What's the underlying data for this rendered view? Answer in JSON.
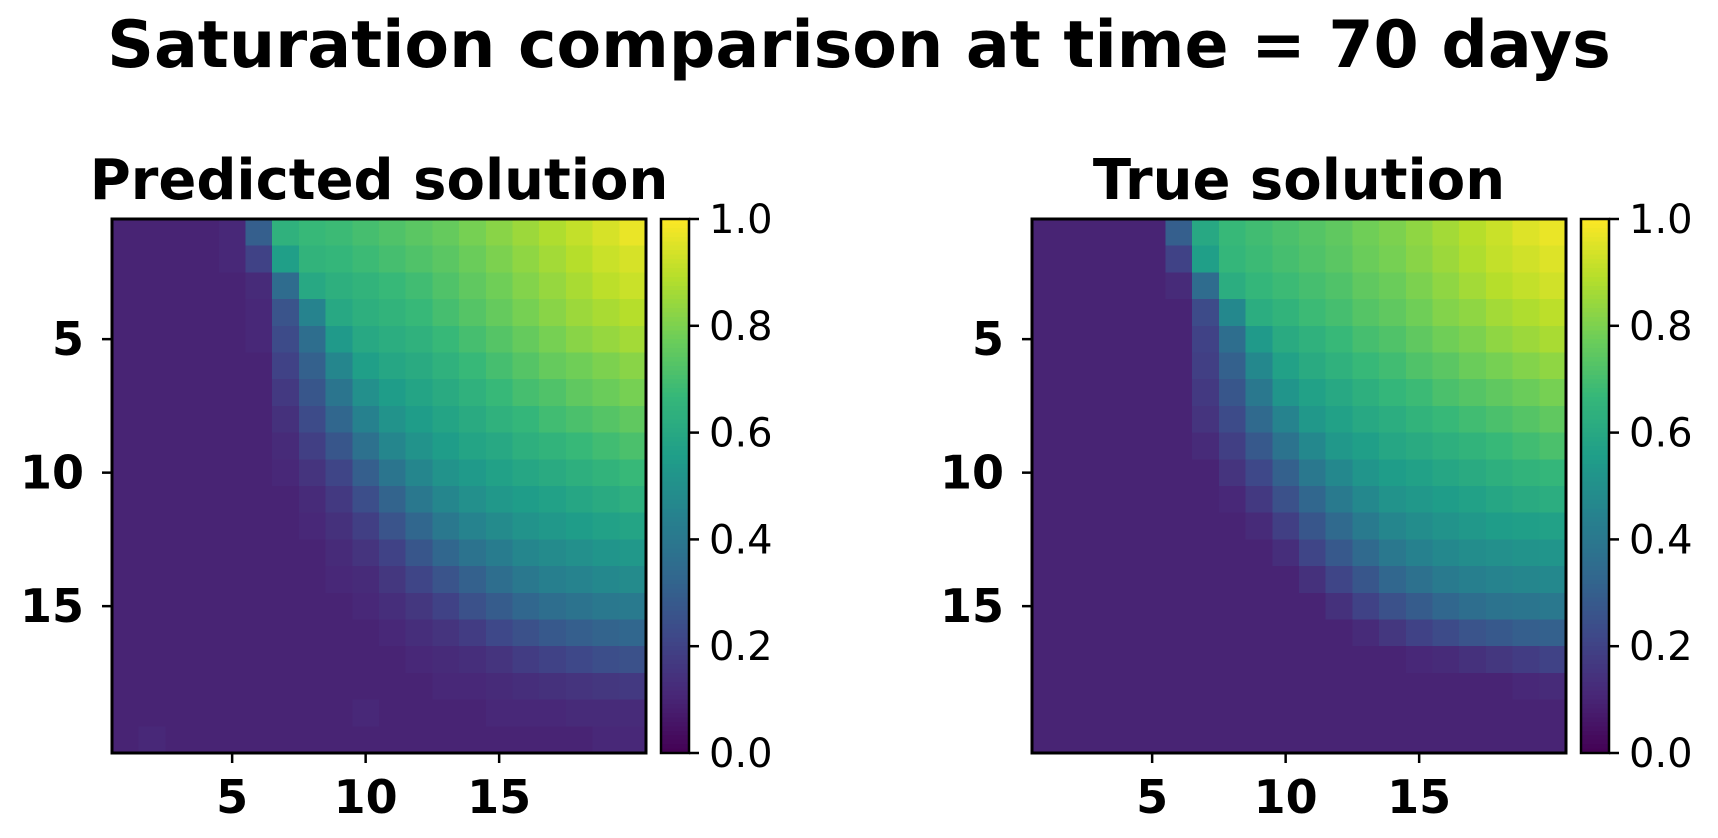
{
  "figure": {
    "title": "Saturation comparison at time = 70 days"
  },
  "colormap": {
    "name": "viridis",
    "stops": [
      "#440154",
      "#482878",
      "#3e4989",
      "#31688e",
      "#26828e",
      "#1f9e89",
      "#35b779",
      "#6ece58",
      "#b5de2b",
      "#fde725"
    ]
  },
  "chart_data": [
    {
      "type": "heatmap",
      "title": "Predicted solution",
      "xlabel": "",
      "ylabel": "",
      "grid_size": 20,
      "x_ticks": [
        "5",
        "10",
        "15"
      ],
      "y_ticks": [
        "5",
        "10",
        "15"
      ],
      "colorbar": {
        "min": 0.0,
        "max": 1.0,
        "ticks": [
          "0.0",
          "0.2",
          "0.4",
          "0.6",
          "0.8",
          "1.0"
        ]
      },
      "values": [
        [
          0.1,
          0.1,
          0.1,
          0.1,
          0.11,
          0.3,
          0.64,
          0.67,
          0.68,
          0.7,
          0.72,
          0.74,
          0.76,
          0.79,
          0.82,
          0.85,
          0.88,
          0.91,
          0.94,
          0.97
        ],
        [
          0.1,
          0.1,
          0.1,
          0.1,
          0.11,
          0.2,
          0.56,
          0.65,
          0.66,
          0.68,
          0.7,
          0.72,
          0.74,
          0.77,
          0.8,
          0.83,
          0.86,
          0.89,
          0.92,
          0.94
        ],
        [
          0.1,
          0.1,
          0.1,
          0.1,
          0.1,
          0.12,
          0.35,
          0.6,
          0.63,
          0.65,
          0.67,
          0.69,
          0.72,
          0.75,
          0.78,
          0.81,
          0.84,
          0.87,
          0.9,
          0.92
        ],
        [
          0.1,
          0.1,
          0.1,
          0.1,
          0.1,
          0.11,
          0.26,
          0.45,
          0.6,
          0.63,
          0.65,
          0.67,
          0.7,
          0.73,
          0.76,
          0.79,
          0.82,
          0.85,
          0.87,
          0.89
        ],
        [
          0.1,
          0.1,
          0.1,
          0.1,
          0.1,
          0.11,
          0.23,
          0.36,
          0.54,
          0.6,
          0.62,
          0.64,
          0.67,
          0.7,
          0.73,
          0.76,
          0.79,
          0.82,
          0.84,
          0.86
        ],
        [
          0.1,
          0.1,
          0.1,
          0.1,
          0.1,
          0.1,
          0.2,
          0.31,
          0.46,
          0.56,
          0.59,
          0.61,
          0.64,
          0.67,
          0.7,
          0.73,
          0.76,
          0.78,
          0.8,
          0.82
        ],
        [
          0.1,
          0.1,
          0.1,
          0.1,
          0.1,
          0.1,
          0.17,
          0.27,
          0.39,
          0.5,
          0.55,
          0.58,
          0.61,
          0.64,
          0.67,
          0.7,
          0.72,
          0.75,
          0.77,
          0.79
        ],
        [
          0.1,
          0.1,
          0.1,
          0.1,
          0.1,
          0.1,
          0.14,
          0.23,
          0.33,
          0.44,
          0.51,
          0.55,
          0.58,
          0.61,
          0.64,
          0.66,
          0.69,
          0.71,
          0.73,
          0.75
        ],
        [
          0.1,
          0.1,
          0.1,
          0.1,
          0.1,
          0.1,
          0.12,
          0.19,
          0.27,
          0.37,
          0.46,
          0.51,
          0.55,
          0.58,
          0.6,
          0.63,
          0.65,
          0.67,
          0.69,
          0.71
        ],
        [
          0.1,
          0.1,
          0.1,
          0.1,
          0.1,
          0.1,
          0.11,
          0.15,
          0.21,
          0.3,
          0.39,
          0.46,
          0.51,
          0.54,
          0.57,
          0.59,
          0.61,
          0.63,
          0.65,
          0.67
        ],
        [
          0.1,
          0.1,
          0.1,
          0.1,
          0.1,
          0.1,
          0.1,
          0.12,
          0.17,
          0.24,
          0.32,
          0.4,
          0.46,
          0.5,
          0.53,
          0.55,
          0.57,
          0.59,
          0.61,
          0.63
        ],
        [
          0.1,
          0.1,
          0.1,
          0.1,
          0.1,
          0.1,
          0.1,
          0.11,
          0.14,
          0.19,
          0.26,
          0.33,
          0.4,
          0.45,
          0.48,
          0.51,
          0.53,
          0.55,
          0.57,
          0.58
        ],
        [
          0.1,
          0.1,
          0.1,
          0.1,
          0.1,
          0.1,
          0.1,
          0.1,
          0.12,
          0.15,
          0.2,
          0.27,
          0.33,
          0.38,
          0.42,
          0.46,
          0.48,
          0.5,
          0.52,
          0.53
        ],
        [
          0.1,
          0.1,
          0.1,
          0.1,
          0.1,
          0.1,
          0.1,
          0.1,
          0.11,
          0.12,
          0.16,
          0.21,
          0.26,
          0.31,
          0.36,
          0.4,
          0.43,
          0.45,
          0.47,
          0.48
        ],
        [
          0.1,
          0.1,
          0.1,
          0.1,
          0.1,
          0.1,
          0.1,
          0.1,
          0.1,
          0.11,
          0.13,
          0.16,
          0.2,
          0.25,
          0.29,
          0.33,
          0.36,
          0.38,
          0.4,
          0.41
        ],
        [
          0.1,
          0.1,
          0.1,
          0.1,
          0.1,
          0.1,
          0.1,
          0.1,
          0.1,
          0.1,
          0.11,
          0.13,
          0.15,
          0.18,
          0.22,
          0.25,
          0.28,
          0.3,
          0.32,
          0.33
        ],
        [
          0.1,
          0.1,
          0.1,
          0.1,
          0.1,
          0.1,
          0.1,
          0.1,
          0.1,
          0.1,
          0.1,
          0.11,
          0.12,
          0.13,
          0.15,
          0.18,
          0.2,
          0.22,
          0.24,
          0.25
        ],
        [
          0.1,
          0.1,
          0.1,
          0.1,
          0.1,
          0.1,
          0.1,
          0.1,
          0.1,
          0.1,
          0.1,
          0.1,
          0.11,
          0.11,
          0.12,
          0.13,
          0.14,
          0.15,
          0.16,
          0.17
        ],
        [
          0.1,
          0.1,
          0.1,
          0.1,
          0.1,
          0.1,
          0.1,
          0.1,
          0.1,
          0.11,
          0.1,
          0.1,
          0.1,
          0.1,
          0.11,
          0.11,
          0.11,
          0.12,
          0.12,
          0.12
        ],
        [
          0.1,
          0.11,
          0.1,
          0.1,
          0.1,
          0.1,
          0.1,
          0.1,
          0.1,
          0.1,
          0.1,
          0.1,
          0.1,
          0.1,
          0.1,
          0.1,
          0.1,
          0.1,
          0.11,
          0.11
        ]
      ]
    },
    {
      "type": "heatmap",
      "title": "True solution",
      "xlabel": "",
      "ylabel": "",
      "grid_size": 20,
      "x_ticks": [
        "5",
        "10",
        "15"
      ],
      "y_ticks": [
        "5",
        "10",
        "15"
      ],
      "colorbar": {
        "min": 0.0,
        "max": 1.0,
        "ticks": [
          "0.0",
          "0.2",
          "0.4",
          "0.6",
          "0.8",
          "1.0"
        ]
      },
      "values": [
        [
          0.1,
          0.1,
          0.1,
          0.1,
          0.1,
          0.3,
          0.6,
          0.67,
          0.69,
          0.71,
          0.73,
          0.75,
          0.78,
          0.8,
          0.83,
          0.86,
          0.89,
          0.92,
          0.95,
          0.97
        ],
        [
          0.1,
          0.1,
          0.1,
          0.1,
          0.1,
          0.2,
          0.56,
          0.66,
          0.68,
          0.7,
          0.72,
          0.74,
          0.77,
          0.79,
          0.82,
          0.85,
          0.88,
          0.91,
          0.93,
          0.95
        ],
        [
          0.1,
          0.1,
          0.1,
          0.1,
          0.1,
          0.12,
          0.35,
          0.62,
          0.66,
          0.68,
          0.7,
          0.72,
          0.75,
          0.77,
          0.8,
          0.83,
          0.86,
          0.89,
          0.91,
          0.93
        ],
        [
          0.1,
          0.1,
          0.1,
          0.1,
          0.1,
          0.1,
          0.23,
          0.47,
          0.62,
          0.65,
          0.68,
          0.7,
          0.73,
          0.75,
          0.78,
          0.81,
          0.83,
          0.86,
          0.88,
          0.9
        ],
        [
          0.1,
          0.1,
          0.1,
          0.1,
          0.1,
          0.1,
          0.2,
          0.36,
          0.54,
          0.61,
          0.64,
          0.67,
          0.7,
          0.72,
          0.75,
          0.78,
          0.8,
          0.83,
          0.85,
          0.87
        ],
        [
          0.1,
          0.1,
          0.1,
          0.1,
          0.1,
          0.1,
          0.19,
          0.31,
          0.47,
          0.57,
          0.61,
          0.64,
          0.67,
          0.69,
          0.72,
          0.74,
          0.77,
          0.79,
          0.81,
          0.83
        ],
        [
          0.1,
          0.1,
          0.1,
          0.1,
          0.1,
          0.1,
          0.17,
          0.27,
          0.4,
          0.52,
          0.57,
          0.6,
          0.63,
          0.66,
          0.68,
          0.71,
          0.73,
          0.75,
          0.77,
          0.79
        ],
        [
          0.1,
          0.1,
          0.1,
          0.1,
          0.1,
          0.1,
          0.15,
          0.23,
          0.34,
          0.45,
          0.53,
          0.57,
          0.6,
          0.62,
          0.65,
          0.67,
          0.69,
          0.71,
          0.73,
          0.75
        ],
        [
          0.1,
          0.1,
          0.1,
          0.1,
          0.1,
          0.1,
          0.12,
          0.19,
          0.28,
          0.38,
          0.47,
          0.53,
          0.56,
          0.59,
          0.61,
          0.63,
          0.65,
          0.67,
          0.69,
          0.71
        ],
        [
          0.1,
          0.1,
          0.1,
          0.1,
          0.1,
          0.1,
          0.1,
          0.15,
          0.22,
          0.31,
          0.4,
          0.47,
          0.52,
          0.55,
          0.57,
          0.59,
          0.61,
          0.63,
          0.65,
          0.66
        ],
        [
          0.1,
          0.1,
          0.1,
          0.1,
          0.1,
          0.1,
          0.1,
          0.11,
          0.17,
          0.25,
          0.33,
          0.41,
          0.47,
          0.51,
          0.53,
          0.55,
          0.57,
          0.59,
          0.61,
          0.62
        ],
        [
          0.1,
          0.1,
          0.1,
          0.1,
          0.1,
          0.1,
          0.1,
          0.1,
          0.12,
          0.19,
          0.27,
          0.34,
          0.41,
          0.46,
          0.49,
          0.51,
          0.53,
          0.55,
          0.56,
          0.57
        ],
        [
          0.1,
          0.1,
          0.1,
          0.1,
          0.1,
          0.1,
          0.1,
          0.1,
          0.1,
          0.13,
          0.21,
          0.28,
          0.34,
          0.4,
          0.44,
          0.47,
          0.49,
          0.5,
          0.51,
          0.52
        ],
        [
          0.1,
          0.1,
          0.1,
          0.1,
          0.1,
          0.1,
          0.1,
          0.1,
          0.1,
          0.1,
          0.14,
          0.21,
          0.27,
          0.33,
          0.37,
          0.41,
          0.43,
          0.45,
          0.46,
          0.47
        ],
        [
          0.1,
          0.1,
          0.1,
          0.1,
          0.1,
          0.1,
          0.1,
          0.1,
          0.1,
          0.1,
          0.1,
          0.14,
          0.2,
          0.25,
          0.29,
          0.33,
          0.36,
          0.38,
          0.39,
          0.4
        ],
        [
          0.1,
          0.1,
          0.1,
          0.1,
          0.1,
          0.1,
          0.1,
          0.1,
          0.1,
          0.1,
          0.1,
          0.1,
          0.12,
          0.16,
          0.2,
          0.23,
          0.26,
          0.28,
          0.3,
          0.31
        ],
        [
          0.1,
          0.1,
          0.1,
          0.1,
          0.1,
          0.1,
          0.1,
          0.1,
          0.1,
          0.1,
          0.1,
          0.1,
          0.1,
          0.1,
          0.11,
          0.12,
          0.14,
          0.16,
          0.18,
          0.2
        ],
        [
          0.1,
          0.1,
          0.1,
          0.1,
          0.1,
          0.1,
          0.1,
          0.1,
          0.1,
          0.1,
          0.1,
          0.1,
          0.1,
          0.1,
          0.1,
          0.1,
          0.1,
          0.1,
          0.11,
          0.12
        ],
        [
          0.1,
          0.1,
          0.1,
          0.1,
          0.1,
          0.1,
          0.1,
          0.1,
          0.1,
          0.1,
          0.1,
          0.1,
          0.1,
          0.1,
          0.1,
          0.1,
          0.1,
          0.1,
          0.1,
          0.1
        ],
        [
          0.1,
          0.1,
          0.1,
          0.1,
          0.1,
          0.1,
          0.1,
          0.1,
          0.1,
          0.1,
          0.1,
          0.1,
          0.1,
          0.1,
          0.1,
          0.1,
          0.1,
          0.1,
          0.1,
          0.1
        ]
      ]
    }
  ]
}
